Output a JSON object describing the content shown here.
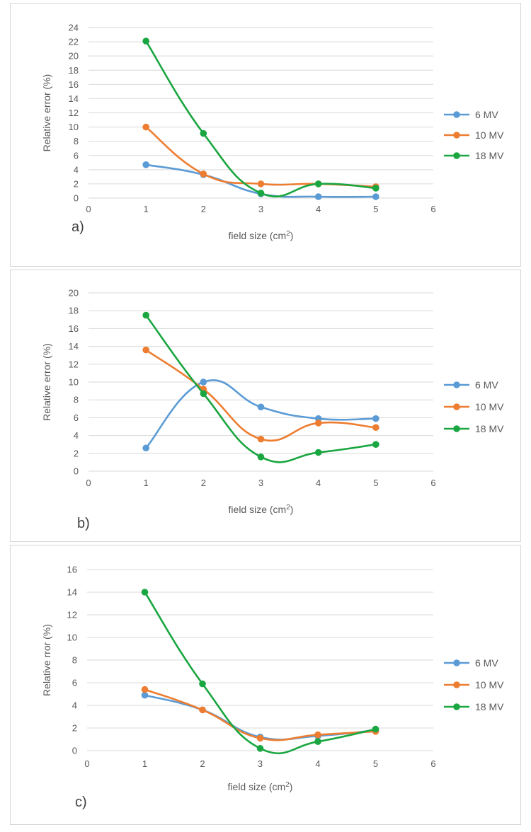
{
  "colors": {
    "6 MV": "#5b9bd5",
    "10 MV": "#ed7d31",
    "18 MV": "#1aa640",
    "grid": "#d9d9d9",
    "text": "#595959"
  },
  "chart_data": [
    {
      "type": "line",
      "panel_label": "a)",
      "xlabel": "field size (cm",
      "xlabel_sup": "2",
      "xlabel_end": ")",
      "ylabel": "Relative error (%)",
      "xlim": [
        0,
        6
      ],
      "x_ticks": [
        0,
        1,
        2,
        3,
        4,
        5,
        6
      ],
      "ylim": [
        0,
        24
      ],
      "y_ticks": [
        0,
        2,
        4,
        6,
        8,
        10,
        12,
        14,
        16,
        18,
        20,
        22,
        24
      ],
      "grid": "horizontal",
      "legend_position": "right",
      "smooth": true,
      "x": [
        1,
        2,
        3,
        4,
        5
      ],
      "series": [
        {
          "name": "6 MV",
          "values": [
            4.7,
            3.3,
            0.6,
            0.2,
            0.2
          ]
        },
        {
          "name": "10 MV",
          "values": [
            10.0,
            3.4,
            2.0,
            2.0,
            1.6
          ]
        },
        {
          "name": "18 MV",
          "values": [
            22.1,
            9.1,
            0.7,
            2.0,
            1.4
          ]
        }
      ]
    },
    {
      "type": "line",
      "panel_label": "b)",
      "xlabel": "field size (cm",
      "xlabel_sup": "2",
      "xlabel_end": ")",
      "ylabel": "Relative error (%)",
      "xlim": [
        0,
        6
      ],
      "x_ticks": [
        0,
        1,
        2,
        3,
        4,
        5,
        6
      ],
      "ylim": [
        0,
        20
      ],
      "y_ticks": [
        0,
        2,
        4,
        6,
        8,
        10,
        12,
        14,
        16,
        18,
        20
      ],
      "grid": "horizontal",
      "legend_position": "right",
      "smooth": true,
      "x": [
        1,
        2,
        3,
        4,
        5
      ],
      "series": [
        {
          "name": "6 MV",
          "values": [
            2.6,
            10.0,
            7.2,
            5.9,
            5.9
          ]
        },
        {
          "name": "10 MV",
          "values": [
            13.6,
            9.2,
            3.6,
            5.4,
            4.9
          ]
        },
        {
          "name": "18 MV",
          "values": [
            17.5,
            8.7,
            1.6,
            2.1,
            3.0
          ]
        }
      ]
    },
    {
      "type": "line",
      "panel_label": "c)",
      "xlabel": "field size (cm",
      "xlabel_sup": "2",
      "xlabel_end": ")",
      "ylabel": "Relative rror (%)",
      "xlim": [
        0,
        6
      ],
      "x_ticks": [
        0,
        1,
        2,
        3,
        4,
        5,
        6
      ],
      "ylim": [
        0,
        16
      ],
      "y_ticks": [
        0,
        2,
        4,
        6,
        8,
        10,
        12,
        14,
        16
      ],
      "grid": "horizontal",
      "legend_position": "right",
      "smooth": true,
      "x": [
        1,
        2,
        3,
        4,
        5
      ],
      "series": [
        {
          "name": "6 MV",
          "values": [
            4.9,
            3.6,
            1.2,
            1.3,
            1.8
          ]
        },
        {
          "name": "10 MV",
          "values": [
            5.4,
            3.6,
            1.1,
            1.4,
            1.7
          ]
        },
        {
          "name": "18 MV",
          "values": [
            14.0,
            5.9,
            0.2,
            0.8,
            1.9
          ]
        }
      ]
    }
  ]
}
